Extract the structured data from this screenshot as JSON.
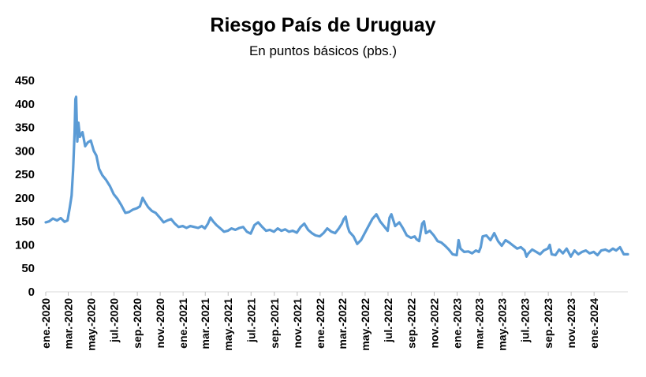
{
  "chart_data": {
    "type": "line",
    "title": "Riesgo País de Uruguay",
    "subtitle": "En puntos básicos (pbs.)",
    "xlabel": "",
    "ylabel": "",
    "ylim": [
      0,
      450
    ],
    "yticks": [
      0,
      50,
      100,
      150,
      200,
      250,
      300,
      350,
      400,
      450
    ],
    "grid": false,
    "legend": "none",
    "line_color": "#5B9BD5",
    "x_tick_labels": [
      "ene.-2020",
      "mar.-2020",
      "may.-2020",
      "jul.-2020",
      "sep.-2020",
      "nov.-2020",
      "ene.-2021",
      "mar.-2021",
      "may.-2021",
      "jul.-2021",
      "sep.-2021",
      "nov.-2021",
      "ene.-2022",
      "mar.-2022",
      "may.-2022",
      "jul.-2022",
      "sep.-2022",
      "nov.-2022",
      "ene.-2023",
      "mar.-2023",
      "may.-2023",
      "jul.-2023",
      "sep.-2023",
      "nov.-2023",
      "ene.-2024"
    ],
    "x_range": [
      "2020-01-01",
      "2024-03-31"
    ],
    "series": [
      {
        "values": [
          [
            "2020-01-01",
            148
          ],
          [
            "2020-01-10",
            150
          ],
          [
            "2020-01-20",
            156
          ],
          [
            "2020-01-31",
            152
          ],
          [
            "2020-02-10",
            157
          ],
          [
            "2020-02-20",
            149
          ],
          [
            "2020-02-28",
            152
          ],
          [
            "2020-03-05",
            180
          ],
          [
            "2020-03-10",
            205
          ],
          [
            "2020-03-14",
            260
          ],
          [
            "2020-03-18",
            340
          ],
          [
            "2020-03-20",
            410
          ],
          [
            "2020-03-22",
            415
          ],
          [
            "2020-03-25",
            320
          ],
          [
            "2020-03-28",
            360
          ],
          [
            "2020-04-01",
            330
          ],
          [
            "2020-04-08",
            340
          ],
          [
            "2020-04-15",
            310
          ],
          [
            "2020-04-22",
            318
          ],
          [
            "2020-04-30",
            322
          ],
          [
            "2020-05-08",
            300
          ],
          [
            "2020-05-15",
            290
          ],
          [
            "2020-05-22",
            262
          ],
          [
            "2020-05-31",
            248
          ],
          [
            "2020-06-10",
            238
          ],
          [
            "2020-06-20",
            225
          ],
          [
            "2020-06-30",
            208
          ],
          [
            "2020-07-10",
            198
          ],
          [
            "2020-07-20",
            185
          ],
          [
            "2020-07-31",
            168
          ],
          [
            "2020-08-10",
            170
          ],
          [
            "2020-08-20",
            175
          ],
          [
            "2020-08-31",
            178
          ],
          [
            "2020-09-08",
            182
          ],
          [
            "2020-09-15",
            200
          ],
          [
            "2020-09-22",
            190
          ],
          [
            "2020-09-30",
            180
          ],
          [
            "2020-10-10",
            172
          ],
          [
            "2020-10-20",
            168
          ],
          [
            "2020-10-31",
            158
          ],
          [
            "2020-11-10",
            148
          ],
          [
            "2020-11-20",
            152
          ],
          [
            "2020-11-30",
            155
          ],
          [
            "2020-12-10",
            145
          ],
          [
            "2020-12-20",
            138
          ],
          [
            "2020-12-31",
            140
          ],
          [
            "2021-01-10",
            136
          ],
          [
            "2021-01-20",
            140
          ],
          [
            "2021-01-31",
            138
          ],
          [
            "2021-02-10",
            136
          ],
          [
            "2021-02-20",
            140
          ],
          [
            "2021-02-28",
            135
          ],
          [
            "2021-03-08",
            145
          ],
          [
            "2021-03-15",
            158
          ],
          [
            "2021-03-22",
            150
          ],
          [
            "2021-03-31",
            142
          ],
          [
            "2021-04-10",
            135
          ],
          [
            "2021-04-20",
            128
          ],
          [
            "2021-04-30",
            130
          ],
          [
            "2021-05-10",
            135
          ],
          [
            "2021-05-20",
            132
          ],
          [
            "2021-05-31",
            136
          ],
          [
            "2021-06-10",
            138
          ],
          [
            "2021-06-20",
            128
          ],
          [
            "2021-06-30",
            124
          ],
          [
            "2021-07-10",
            142
          ],
          [
            "2021-07-20",
            148
          ],
          [
            "2021-07-31",
            138
          ],
          [
            "2021-08-10",
            130
          ],
          [
            "2021-08-20",
            132
          ],
          [
            "2021-08-31",
            128
          ],
          [
            "2021-09-10",
            135
          ],
          [
            "2021-09-20",
            130
          ],
          [
            "2021-09-30",
            133
          ],
          [
            "2021-10-10",
            128
          ],
          [
            "2021-10-20",
            130
          ],
          [
            "2021-10-31",
            126
          ],
          [
            "2021-11-10",
            138
          ],
          [
            "2021-11-20",
            145
          ],
          [
            "2021-11-30",
            132
          ],
          [
            "2021-12-10",
            125
          ],
          [
            "2021-12-20",
            120
          ],
          [
            "2021-12-31",
            118
          ],
          [
            "2022-01-10",
            125
          ],
          [
            "2022-01-20",
            135
          ],
          [
            "2022-01-31",
            128
          ],
          [
            "2022-02-10",
            125
          ],
          [
            "2022-02-20",
            135
          ],
          [
            "2022-02-28",
            145
          ],
          [
            "2022-03-05",
            155
          ],
          [
            "2022-03-10",
            160
          ],
          [
            "2022-03-15",
            140
          ],
          [
            "2022-03-20",
            128
          ],
          [
            "2022-03-31",
            118
          ],
          [
            "2022-04-10",
            102
          ],
          [
            "2022-04-20",
            110
          ],
          [
            "2022-04-30",
            125
          ],
          [
            "2022-05-10",
            140
          ],
          [
            "2022-05-20",
            155
          ],
          [
            "2022-05-31",
            165
          ],
          [
            "2022-06-10",
            150
          ],
          [
            "2022-06-20",
            140
          ],
          [
            "2022-06-30",
            130
          ],
          [
            "2022-07-05",
            158
          ],
          [
            "2022-07-10",
            165
          ],
          [
            "2022-07-20",
            140
          ],
          [
            "2022-07-31",
            148
          ],
          [
            "2022-08-10",
            135
          ],
          [
            "2022-08-20",
            120
          ],
          [
            "2022-08-31",
            115
          ],
          [
            "2022-09-10",
            118
          ],
          [
            "2022-09-15",
            112
          ],
          [
            "2022-09-22",
            108
          ],
          [
            "2022-09-30",
            145
          ],
          [
            "2022-10-05",
            150
          ],
          [
            "2022-10-10",
            125
          ],
          [
            "2022-10-20",
            130
          ],
          [
            "2022-10-31",
            120
          ],
          [
            "2022-11-10",
            108
          ],
          [
            "2022-11-20",
            105
          ],
          [
            "2022-11-30",
            98
          ],
          [
            "2022-12-10",
            90
          ],
          [
            "2022-12-20",
            80
          ],
          [
            "2022-12-31",
            78
          ],
          [
            "2023-01-05",
            110
          ],
          [
            "2023-01-10",
            92
          ],
          [
            "2023-01-20",
            85
          ],
          [
            "2023-01-31",
            86
          ],
          [
            "2023-02-10",
            82
          ],
          [
            "2023-02-20",
            88
          ],
          [
            "2023-02-28",
            85
          ],
          [
            "2023-03-05",
            95
          ],
          [
            "2023-03-10",
            118
          ],
          [
            "2023-03-20",
            120
          ],
          [
            "2023-03-31",
            110
          ],
          [
            "2023-04-10",
            125
          ],
          [
            "2023-04-20",
            108
          ],
          [
            "2023-04-30",
            98
          ],
          [
            "2023-05-10",
            110
          ],
          [
            "2023-05-20",
            105
          ],
          [
            "2023-05-31",
            98
          ],
          [
            "2023-06-10",
            92
          ],
          [
            "2023-06-20",
            95
          ],
          [
            "2023-06-30",
            88
          ],
          [
            "2023-07-05",
            75
          ],
          [
            "2023-07-10",
            82
          ],
          [
            "2023-07-20",
            90
          ],
          [
            "2023-07-31",
            85
          ],
          [
            "2023-08-10",
            80
          ],
          [
            "2023-08-20",
            88
          ],
          [
            "2023-08-31",
            92
          ],
          [
            "2023-09-05",
            100
          ],
          [
            "2023-09-10",
            80
          ],
          [
            "2023-09-20",
            78
          ],
          [
            "2023-09-30",
            90
          ],
          [
            "2023-10-10",
            82
          ],
          [
            "2023-10-20",
            92
          ],
          [
            "2023-10-31",
            75
          ],
          [
            "2023-11-10",
            88
          ],
          [
            "2023-11-20",
            80
          ],
          [
            "2023-11-30",
            85
          ],
          [
            "2023-12-10",
            88
          ],
          [
            "2023-12-20",
            82
          ],
          [
            "2023-12-31",
            85
          ],
          [
            "2024-01-10",
            78
          ],
          [
            "2024-01-20",
            88
          ],
          [
            "2024-01-31",
            90
          ],
          [
            "2024-02-10",
            86
          ],
          [
            "2024-02-20",
            92
          ],
          [
            "2024-02-29",
            88
          ],
          [
            "2024-03-10",
            95
          ],
          [
            "2024-03-20",
            80
          ],
          [
            "2024-03-31",
            80
          ]
        ]
      }
    ]
  }
}
